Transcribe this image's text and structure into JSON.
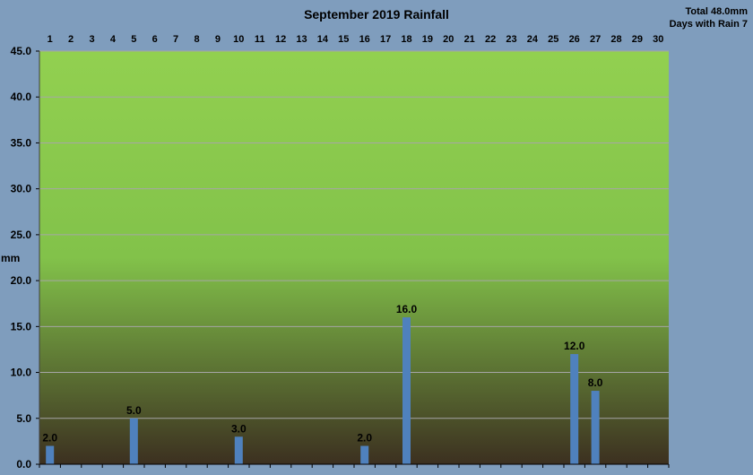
{
  "chart_data": {
    "type": "bar",
    "title": "September 2019 Rainfall",
    "summary": {
      "total": "Total 48.0mm",
      "days_with_rain": "Days with Rain 7"
    },
    "ylabel": "mm",
    "xlabel": "",
    "ylim": [
      0,
      45
    ],
    "yticks": [
      "0.0",
      "5.0",
      "10.0",
      "15.0",
      "20.0",
      "25.0",
      "30.0",
      "35.0",
      "40.0",
      "45.0"
    ],
    "categories": [
      "1",
      "2",
      "3",
      "4",
      "5",
      "6",
      "7",
      "8",
      "9",
      "10",
      "11",
      "12",
      "13",
      "14",
      "15",
      "16",
      "17",
      "18",
      "19",
      "20",
      "21",
      "22",
      "23",
      "24",
      "25",
      "26",
      "27",
      "28",
      "29",
      "30"
    ],
    "values": [
      2,
      0,
      0,
      0,
      5,
      0,
      0,
      0,
      0,
      3,
      0,
      0,
      0,
      0,
      0,
      2,
      0,
      16,
      0,
      0,
      0,
      0,
      0,
      0,
      0,
      12,
      8,
      0,
      0,
      0
    ],
    "data_labels": [
      "2.0",
      "",
      "",
      "",
      "5.0",
      "",
      "",
      "",
      "",
      "3.0",
      "",
      "",
      "",
      "",
      "",
      "2.0",
      "",
      "16.0",
      "",
      "",
      "",
      "",
      "",
      "",
      "",
      "12.0",
      "8.0",
      "",
      "",
      ""
    ],
    "x_axis_position": "top",
    "grid": true,
    "colors": {
      "bar": "#4f81bd",
      "plot_top": "#92d050",
      "plot_bottom": "#3c3020",
      "grid": "#a6a6a6",
      "background": "#7f9dbd"
    }
  }
}
